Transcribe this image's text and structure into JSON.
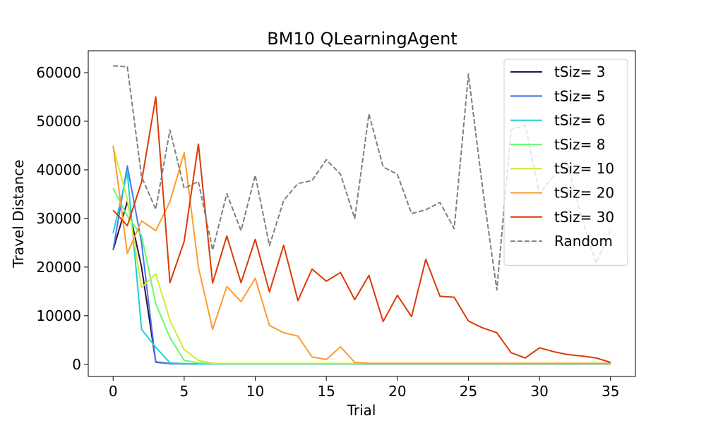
{
  "chart_data": {
    "type": "line",
    "title": "BM10  QLearningAgent",
    "xlabel": "Trial",
    "ylabel": "Travel Distance",
    "xlim": [
      -1.75,
      36.75
    ],
    "ylim": [
      -2500,
      64500
    ],
    "xticks": [
      0,
      5,
      10,
      15,
      20,
      25,
      30,
      35
    ],
    "yticks": [
      0,
      10000,
      20000,
      30000,
      40000,
      50000,
      60000
    ],
    "grid": false,
    "legend_position": "top-right",
    "x": [
      0,
      1,
      2,
      3,
      4,
      5,
      6,
      7,
      8,
      9,
      10,
      11,
      12,
      13,
      14,
      15,
      16,
      17,
      18,
      19,
      20,
      21,
      22,
      23,
      24,
      25,
      26,
      27,
      28,
      29,
      30,
      31,
      32,
      33,
      34,
      35
    ],
    "series": [
      {
        "name": "tSiz= 3",
        "color": "#30123b",
        "dash": "solid",
        "values": [
          23500,
          33500,
          20000,
          500,
          150,
          100,
          100,
          100,
          100,
          100,
          100,
          100,
          100,
          100,
          100,
          100,
          100,
          100,
          100,
          100,
          100,
          100,
          100,
          100,
          100,
          100,
          100,
          100,
          100,
          100,
          100,
          100,
          100,
          100,
          100,
          100
        ]
      },
      {
        "name": "tSiz= 5",
        "color": "#4777ef",
        "dash": "solid",
        "values": [
          23500,
          40800,
          25000,
          400,
          150,
          100,
          100,
          100,
          100,
          100,
          100,
          100,
          100,
          100,
          100,
          100,
          100,
          100,
          100,
          100,
          100,
          100,
          100,
          100,
          100,
          100,
          100,
          100,
          100,
          100,
          100,
          100,
          100,
          100,
          100,
          100
        ]
      },
      {
        "name": "tSiz= 6",
        "color": "#1bd0d5",
        "dash": "solid",
        "values": [
          27000,
          39500,
          7200,
          3500,
          300,
          150,
          100,
          100,
          100,
          100,
          100,
          100,
          100,
          100,
          100,
          100,
          100,
          100,
          100,
          100,
          100,
          100,
          100,
          100,
          100,
          100,
          100,
          100,
          100,
          100,
          100,
          100,
          100,
          100,
          100,
          100
        ]
      },
      {
        "name": "tSiz= 8",
        "color": "#62fc6b",
        "dash": "solid",
        "values": [
          36200,
          30500,
          26500,
          12500,
          5500,
          800,
          300,
          150,
          150,
          150,
          150,
          150,
          150,
          150,
          150,
          150,
          150,
          150,
          150,
          150,
          150,
          150,
          150,
          150,
          150,
          150,
          150,
          150,
          150,
          150,
          150,
          150,
          150,
          150,
          150,
          150
        ]
      },
      {
        "name": "tSiz= 10",
        "color": "#d2e935",
        "dash": "solid",
        "values": [
          44800,
          34000,
          15800,
          18600,
          9000,
          3000,
          800,
          200,
          200,
          200,
          200,
          200,
          200,
          200,
          200,
          200,
          200,
          200,
          200,
          200,
          200,
          200,
          200,
          200,
          200,
          200,
          200,
          200,
          200,
          200,
          200,
          200,
          200,
          200,
          200,
          200
        ]
      },
      {
        "name": "tSiz= 20",
        "color": "#fe9b2d",
        "dash": "solid",
        "values": [
          45000,
          22800,
          29500,
          27500,
          33500,
          43500,
          20000,
          7200,
          16000,
          12900,
          17700,
          8000,
          6500,
          5800,
          1500,
          1000,
          3600,
          400,
          200,
          200,
          200,
          200,
          200,
          200,
          200,
          200,
          200,
          200,
          200,
          200,
          200,
          200,
          200,
          200,
          200,
          200
        ]
      },
      {
        "name": "tSiz= 30",
        "color": "#db3a07",
        "dash": "solid",
        "values": [
          31700,
          28500,
          37500,
          55000,
          16800,
          25300,
          45300,
          16700,
          26400,
          16800,
          25700,
          14900,
          24500,
          13100,
          19600,
          17100,
          18900,
          13300,
          18300,
          8800,
          14200,
          9800,
          21600,
          14000,
          13800,
          8900,
          7500,
          6500,
          2400,
          1300,
          3400,
          2600,
          2000,
          1700,
          1300,
          400
        ]
      },
      {
        "name": "Random",
        "color": "#808080",
        "dash": "dashed",
        "values": [
          61400,
          61200,
          38600,
          31900,
          48200,
          36200,
          37600,
          23500,
          35100,
          27500,
          38900,
          24400,
          33700,
          37200,
          37800,
          42100,
          39100,
          30000,
          51500,
          40600,
          39100,
          31000,
          31800,
          33300,
          27900,
          59700,
          36200,
          15300,
          48300,
          49200,
          35000,
          38900,
          41000,
          29800,
          20800,
          27600
        ]
      }
    ]
  }
}
